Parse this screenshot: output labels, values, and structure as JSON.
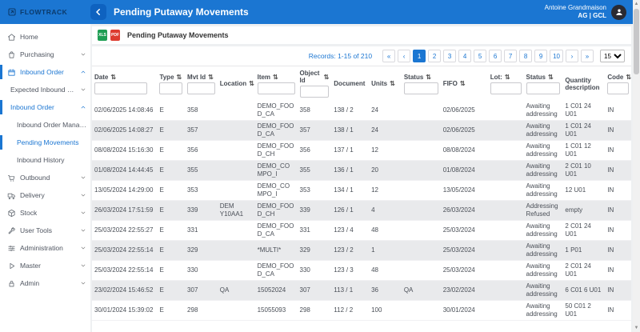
{
  "colors": {
    "accent": "#1b76d2",
    "header_bg": "#1b76d2",
    "excel_green": "#1e9e54",
    "pdf_red": "#dd3b2f",
    "row_alt": "#e9eaec"
  },
  "header": {
    "logo_text": "FLOWTRACK",
    "title": "Pending Putaway Movements",
    "user_name": "Antoine Grandmaison",
    "user_role": "AG | GCL"
  },
  "sidebar": {
    "items": [
      {
        "label": "Home",
        "icon": "home-icon",
        "level": 0,
        "chevron": null,
        "highlight": false,
        "bar": false
      },
      {
        "label": "Purchasing",
        "icon": "purchasing-icon",
        "level": 0,
        "chevron": "down",
        "highlight": false,
        "bar": false
      },
      {
        "label": "Inbound Order",
        "icon": "inbound-order-icon",
        "level": 0,
        "chevron": "up",
        "highlight": true,
        "bar": true
      },
      {
        "label": "Expected Inbound Order",
        "icon": null,
        "level": 1,
        "chevron": "down",
        "highlight": false,
        "bar": false
      },
      {
        "label": "Inbound Order",
        "icon": null,
        "level": 1,
        "chevron": "up",
        "highlight": true,
        "bar": true
      },
      {
        "label": "Inbound Order Management",
        "icon": null,
        "level": 2,
        "chevron": null,
        "highlight": false,
        "bar": false
      },
      {
        "label": "Pending Movements",
        "icon": null,
        "level": 2,
        "chevron": null,
        "highlight": true,
        "bar": true
      },
      {
        "label": "Inbound History",
        "icon": null,
        "level": 2,
        "chevron": null,
        "highlight": false,
        "bar": false
      },
      {
        "label": "Outbound",
        "icon": "outbound-icon",
        "level": 0,
        "chevron": "down",
        "highlight": false,
        "bar": false
      },
      {
        "label": "Delivery",
        "icon": "delivery-icon",
        "level": 0,
        "chevron": "down",
        "highlight": false,
        "bar": false
      },
      {
        "label": "Stock",
        "icon": "stock-icon",
        "level": 0,
        "chevron": "down",
        "highlight": false,
        "bar": false
      },
      {
        "label": "User Tools",
        "icon": "user-tools-icon",
        "level": 0,
        "chevron": "down",
        "highlight": false,
        "bar": false
      },
      {
        "label": "Administration",
        "icon": "administration-icon",
        "level": 0,
        "chevron": "down",
        "highlight": false,
        "bar": false
      },
      {
        "label": "Master",
        "icon": "master-icon",
        "level": 0,
        "chevron": "down",
        "highlight": false,
        "bar": false
      },
      {
        "label": "Admin",
        "icon": "admin-icon",
        "level": 0,
        "chevron": "down",
        "highlight": false,
        "bar": false
      }
    ]
  },
  "toolbar": {
    "title": "Pending Putaway Movements",
    "excel_icon_label": "XLS",
    "pdf_icon_label": "PDF"
  },
  "pagination": {
    "records_text": "Records: 1-15 of 210",
    "first": "«",
    "prev": "‹",
    "next": "›",
    "last": "»",
    "pages": [
      "1",
      "2",
      "3",
      "4",
      "5",
      "6",
      "7",
      "8",
      "9",
      "10"
    ],
    "active_page": "1",
    "page_size": "15"
  },
  "table": {
    "columns": [
      {
        "label": "Date",
        "sort": true,
        "filter": true
      },
      {
        "label": "Type",
        "sort": true,
        "filter": true
      },
      {
        "label": "Mvt Id",
        "sort": true,
        "filter": true
      },
      {
        "label": "Location",
        "sort": true,
        "filter": false
      },
      {
        "label": "Item",
        "sort": true,
        "filter": true
      },
      {
        "label": "Object Id",
        "sort": true,
        "filter": true
      },
      {
        "label": "Document",
        "sort": false,
        "filter": false
      },
      {
        "label": "Units",
        "sort": true,
        "filter": false
      },
      {
        "label": "Status",
        "sort": true,
        "filter": true
      },
      {
        "label": "FIFO",
        "sort": true,
        "filter": false
      },
      {
        "label": "Lot:",
        "sort": true,
        "filter": true
      },
      {
        "label": "Status",
        "sort": true,
        "filter": true
      },
      {
        "label": "Quantity description",
        "sort": false,
        "filter": false
      },
      {
        "label": "Code",
        "sort": true,
        "filter": true
      }
    ],
    "rows": [
      [
        "02/06/2025 14:08:46",
        "E",
        "358",
        "",
        "DEMO_FOOD_CA",
        "358",
        "138 / 2",
        "24",
        "",
        "02/06/2025",
        "",
        "Awaiting addressing",
        "1 C01 24 U01",
        "IN"
      ],
      [
        "02/06/2025 14:08:27",
        "E",
        "357",
        "",
        "DEMO_FOOD_CA",
        "357",
        "138 / 1",
        "24",
        "",
        "02/06/2025",
        "",
        "Awaiting addressing",
        "1 C01 24 U01",
        "IN"
      ],
      [
        "08/08/2024 15:16:30",
        "E",
        "356",
        "",
        "DEMO_FOOD_CH",
        "356",
        "137 / 1",
        "12",
        "",
        "08/08/2024",
        "",
        "Awaiting addressing",
        "1 C01 12 U01",
        "IN"
      ],
      [
        "01/08/2024 14:44:45",
        "E",
        "355",
        "",
        "DEMO_COMPO_I",
        "355",
        "136 / 1",
        "20",
        "",
        "01/08/2024",
        "",
        "Awaiting addressing",
        "2 C01 10 U01",
        "IN"
      ],
      [
        "13/05/2024 14:29:00",
        "E",
        "353",
        "",
        "DEMO_COMPO_I",
        "353",
        "134 / 1",
        "12",
        "",
        "13/05/2024",
        "",
        "Awaiting addressing",
        "12 U01",
        "IN"
      ],
      [
        "26/03/2024 17:51:59",
        "E",
        "339",
        "DEM Y10AA1",
        "DEMO_FOOD_CH",
        "339",
        "126 / 1",
        "4",
        "",
        "26/03/2024",
        "",
        "Addressing Refused",
        "empty",
        "IN"
      ],
      [
        "25/03/2024 22:55:27",
        "E",
        "331",
        "",
        "DEMO_FOOD_CA",
        "331",
        "123 / 4",
        "48",
        "",
        "25/03/2024",
        "",
        "Awaiting addressing",
        "2 C01 24 U01",
        "IN"
      ],
      [
        "25/03/2024 22:55:14",
        "E",
        "329",
        "",
        "*MULTI*",
        "329",
        "123 / 2",
        "1",
        "",
        "25/03/2024",
        "",
        "Awaiting addressing",
        "1 P01",
        "IN"
      ],
      [
        "25/03/2024 22:55:14",
        "E",
        "330",
        "",
        "DEMO_FOOD_CA",
        "330",
        "123 / 3",
        "48",
        "",
        "25/03/2024",
        "",
        "Awaiting addressing",
        "2 C01 24 U01",
        "IN"
      ],
      [
        "23/02/2024 15:46:52",
        "E",
        "307",
        "QA",
        "15052024",
        "307",
        "113 / 1",
        "36",
        "QA",
        "23/02/2024",
        "",
        "Awaiting addressing",
        "6 C01 6 U01",
        "IN"
      ],
      [
        "30/01/2024 15:39:02",
        "E",
        "298",
        "",
        "15055093",
        "298",
        "112 / 2",
        "100",
        "",
        "30/01/2024",
        "",
        "Awaiting addressing",
        "50 C01 2 U01",
        "IN"
      ]
    ]
  }
}
